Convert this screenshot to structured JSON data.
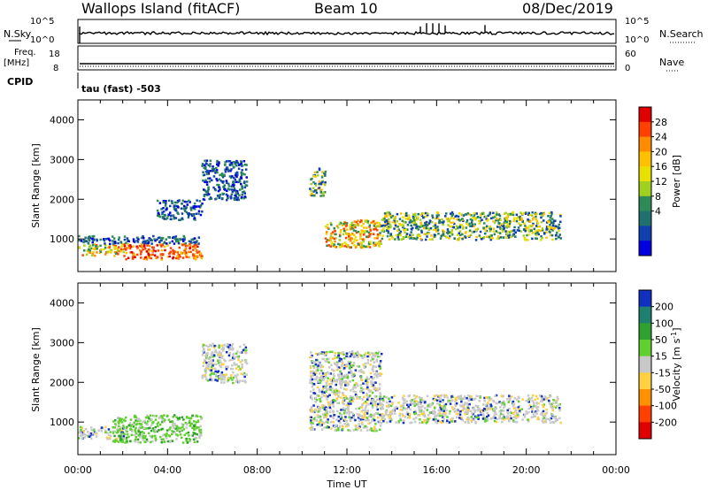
{
  "header": {
    "station": "Wallops Island (fitACF)",
    "beam": "Beam 10",
    "date": "08/Dec/2019"
  },
  "scan_panels": {
    "nsky_label": "N.Sky",
    "nsky_ticks": [
      "10^5",
      "10^0"
    ],
    "nsearch_label": "N.Search",
    "nsearch_ticks": [
      "10^5",
      "10^0"
    ],
    "freq_label": "Freq.",
    "freq_unit": "[MHz]",
    "freq_ticks": [
      "18",
      "8"
    ],
    "nave_label": "Nave",
    "nave_ticks": [
      "60",
      "0"
    ],
    "cpid_label": "CPID",
    "cpid_text": "tau (fast) -503"
  },
  "chart_data": [
    {
      "type": "heatmap",
      "title": "",
      "xlabel": "",
      "ylabel": "Slant Range [km]",
      "xlim": [
        0,
        24
      ],
      "ylim": [
        180,
        4500
      ],
      "x_tick_labels": [
        "00:00",
        "04:00",
        "08:00",
        "12:00",
        "16:00",
        "20:00",
        "00:00"
      ],
      "y_ticks": [
        1000,
        2000,
        3000,
        4000
      ],
      "colorbar": {
        "label": "Power [dB]",
        "ticks": [
          "28",
          "24",
          "20",
          "16",
          "12",
          "8",
          "4"
        ],
        "colors": [
          "#e00000",
          "#ff4000",
          "#ff8c00",
          "#ffc000",
          "#e8e000",
          "#a0d020",
          "#2e8b57",
          "#207070",
          "#1040b0",
          "#0000e0"
        ]
      },
      "echo_regions": [
        {
          "t0": 0.0,
          "t1": 2.0,
          "r0": 600,
          "r1": 900,
          "level": "high"
        },
        {
          "t0": 2.0,
          "t1": 5.5,
          "r0": 500,
          "r1": 900,
          "level": "very high"
        },
        {
          "t0": 0.0,
          "t1": 5.5,
          "r0": 900,
          "r1": 1100,
          "level": "low"
        },
        {
          "t0": 3.5,
          "t1": 5.5,
          "r0": 1500,
          "r1": 2000,
          "level": "low"
        },
        {
          "t0": 5.5,
          "t1": 7.5,
          "r0": 2000,
          "r1": 3000,
          "level": "low"
        },
        {
          "t0": 10.3,
          "t1": 11.0,
          "r0": 2100,
          "r1": 2800,
          "level": "medium"
        },
        {
          "t0": 11.0,
          "t1": 13.5,
          "r0": 800,
          "r1": 1500,
          "level": "high"
        },
        {
          "t0": 13.5,
          "t1": 21.5,
          "r0": 1000,
          "r1": 1700,
          "level": "medium"
        }
      ]
    },
    {
      "type": "heatmap",
      "title": "",
      "xlabel": "Time UT",
      "ylabel": "Slant Range [km]",
      "xlim": [
        0,
        24
      ],
      "ylim": [
        180,
        4500
      ],
      "x_tick_labels": [
        "00:00",
        "04:00",
        "08:00",
        "12:00",
        "16:00",
        "20:00",
        "00:00"
      ],
      "y_ticks": [
        1000,
        2000,
        3000,
        4000
      ],
      "colorbar": {
        "label": "Velocity [m s",
        "label_exponent": "-1",
        "label_close": "]",
        "ticks": [
          "200",
          "100",
          "50",
          "15",
          "-15",
          "-50",
          "-100",
          "-200"
        ],
        "colors": [
          "#1030c0",
          "#208070",
          "#30a030",
          "#60d030",
          "#c8c8c8",
          "#ffd040",
          "#ff9000",
          "#ff4000",
          "#e00000"
        ]
      },
      "echo_regions": [
        {
          "t0": 0.0,
          "t1": 2.0,
          "r0": 600,
          "r1": 900,
          "level": "ground scatter"
        },
        {
          "t0": 1.5,
          "t1": 5.5,
          "r0": 500,
          "r1": 1200,
          "level": "green"
        },
        {
          "t0": 5.5,
          "t1": 7.5,
          "r0": 2000,
          "r1": 3000,
          "level": "ground scatter"
        },
        {
          "t0": 10.3,
          "t1": 13.5,
          "r0": 800,
          "r1": 2800,
          "level": "ground scatter"
        },
        {
          "t0": 13.5,
          "t1": 21.5,
          "r0": 1000,
          "r1": 1700,
          "level": "ground scatter"
        }
      ]
    }
  ]
}
